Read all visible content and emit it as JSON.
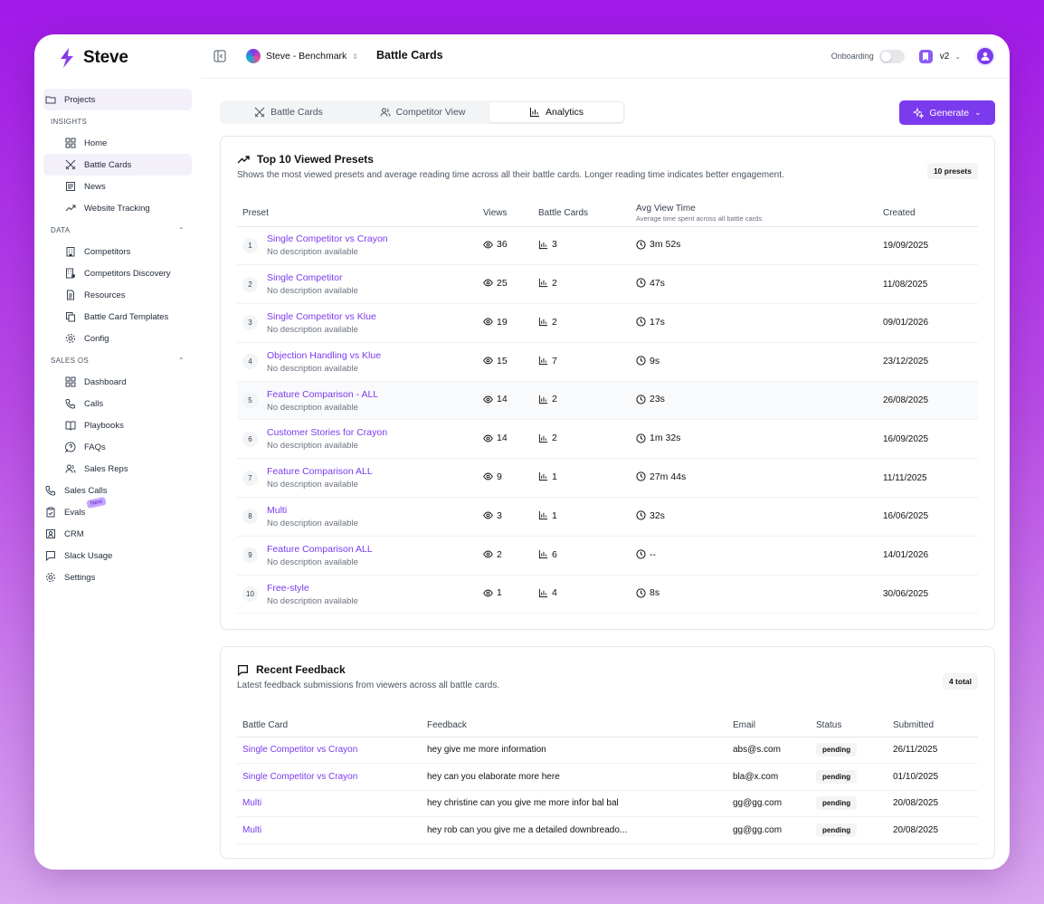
{
  "app": {
    "name": "Steve"
  },
  "header": {
    "project": "Steve - Benchmark",
    "page_title": "Battle Cards",
    "onboarding_label": "Onboarding",
    "version_label": "v2"
  },
  "sidebar": {
    "projects": "Projects",
    "insights_heading": "INSIGHTS",
    "insights": [
      {
        "label": "Home",
        "icon": "dashboard-icon"
      },
      {
        "label": "Battle Cards",
        "icon": "swords-icon"
      },
      {
        "label": "News",
        "icon": "newspaper-icon"
      },
      {
        "label": "Website Tracking",
        "icon": "trend-icon"
      }
    ],
    "data_heading": "DATA",
    "data": [
      {
        "label": "Competitors",
        "icon": "building-icon"
      },
      {
        "label": "Competitors Discovery",
        "icon": "discovery-icon"
      },
      {
        "label": "Resources",
        "icon": "file-icon"
      },
      {
        "label": "Battle Card Templates",
        "icon": "copy-icon"
      },
      {
        "label": "Config",
        "icon": "gear-icon"
      }
    ],
    "sales_heading": "SALES OS",
    "sales": [
      {
        "label": "Dashboard",
        "icon": "dashboard-icon"
      },
      {
        "label": "Calls",
        "icon": "phone-icon"
      },
      {
        "label": "Playbooks",
        "icon": "book-icon"
      },
      {
        "label": "FAQs",
        "icon": "help-icon"
      },
      {
        "label": "Sales Reps",
        "icon": "users-icon"
      }
    ],
    "bottom": [
      {
        "label": "Sales Calls",
        "icon": "phone-icon"
      },
      {
        "label": "Evals",
        "icon": "clipboard-icon",
        "badge": "New"
      },
      {
        "label": "CRM",
        "icon": "contact-icon"
      },
      {
        "label": "Slack Usage",
        "icon": "message-icon"
      },
      {
        "label": "Settings",
        "icon": "gear-icon"
      }
    ]
  },
  "tabs": [
    {
      "label": "Battle Cards",
      "active": false
    },
    {
      "label": "Competitor View",
      "active": false
    },
    {
      "label": "Analytics",
      "active": true
    }
  ],
  "generate_label": "Generate",
  "presets_card": {
    "title": "Top 10 Viewed Presets",
    "description": "Shows the most viewed presets and average reading time across all their battle cards. Longer reading time indicates better engagement.",
    "badge": "10 presets",
    "columns": {
      "preset": "Preset",
      "views": "Views",
      "battle_cards": "Battle Cards",
      "avg_view_time": "Avg View Time",
      "avg_view_time_sub": "Average time spent across all battle cards",
      "created": "Created"
    },
    "rows": [
      {
        "rank": "1",
        "name": "Single Competitor vs Crayon",
        "desc": "No description available",
        "views": "36",
        "cards": "3",
        "time": "3m 52s",
        "created": "19/09/2025"
      },
      {
        "rank": "2",
        "name": "Single Competitor",
        "desc": "No description available",
        "views": "25",
        "cards": "2",
        "time": "47s",
        "created": "11/08/2025"
      },
      {
        "rank": "3",
        "name": "Single Competitor vs Klue",
        "desc": "No description available",
        "views": "19",
        "cards": "2",
        "time": "17s",
        "created": "09/01/2026"
      },
      {
        "rank": "4",
        "name": "Objection Handling vs Klue",
        "desc": "No description available",
        "views": "15",
        "cards": "7",
        "time": "9s",
        "created": "23/12/2025"
      },
      {
        "rank": "5",
        "name": "Feature Comparison - ALL",
        "desc": "No description available",
        "views": "14",
        "cards": "2",
        "time": "23s",
        "created": "26/08/2025"
      },
      {
        "rank": "6",
        "name": "Customer Stories for Crayon",
        "desc": "No description available",
        "views": "14",
        "cards": "2",
        "time": "1m 32s",
        "created": "16/09/2025"
      },
      {
        "rank": "7",
        "name": "Feature Comparison ALL",
        "desc": "No description available",
        "views": "9",
        "cards": "1",
        "time": "27m 44s",
        "created": "11/11/2025"
      },
      {
        "rank": "8",
        "name": "Multi",
        "desc": "No description available",
        "views": "3",
        "cards": "1",
        "time": "32s",
        "created": "16/06/2025"
      },
      {
        "rank": "9",
        "name": "Feature Comparison ALL",
        "desc": "No description available",
        "views": "2",
        "cards": "6",
        "time": "--",
        "created": "14/01/2026"
      },
      {
        "rank": "10",
        "name": "Free-style",
        "desc": "No description available",
        "views": "1",
        "cards": "4",
        "time": "8s",
        "created": "30/06/2025"
      }
    ]
  },
  "feedback_card": {
    "title": "Recent Feedback",
    "description": "Latest feedback submissions from viewers across all battle cards.",
    "badge": "4 total",
    "columns": {
      "battle_card": "Battle Card",
      "feedback": "Feedback",
      "email": "Email",
      "status": "Status",
      "submitted": "Submitted"
    },
    "rows": [
      {
        "card": "Single Competitor vs Crayon",
        "feedback": "hey give me more information",
        "email": "abs@s.com",
        "status": "pending",
        "submitted": "26/11/2025"
      },
      {
        "card": "Single Competitor vs Crayon",
        "feedback": "hey can you elaborate more here",
        "email": "bla@x.com",
        "status": "pending",
        "submitted": "01/10/2025"
      },
      {
        "card": "Multi",
        "feedback": "hey christine can you give me more infor bal bal",
        "email": "gg@gg.com",
        "status": "pending",
        "submitted": "20/08/2025"
      },
      {
        "card": "Multi",
        "feedback": "hey rob can you give me a detailed downbreado...",
        "email": "gg@gg.com",
        "status": "pending",
        "submitted": "20/08/2025"
      }
    ]
  },
  "colors": {
    "accent": "#7c3aed",
    "background_gradient_top": "#a019e8",
    "background_gradient_bottom": "#d9a8f0"
  }
}
